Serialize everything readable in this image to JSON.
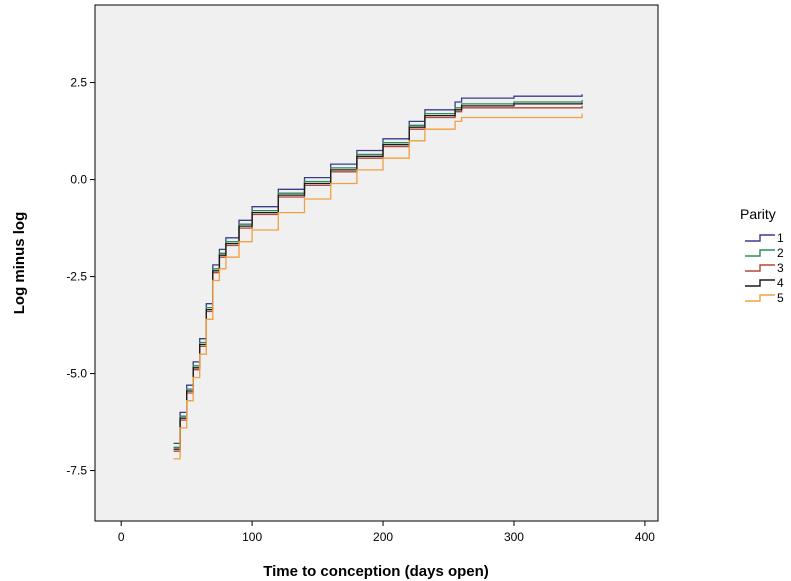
{
  "chart_data": {
    "type": "line",
    "step": true,
    "title": "",
    "xlabel": "Time to conception (days open)",
    "ylabel": "Log minus log",
    "xlim": [
      -20,
      410
    ],
    "ylim": [
      -8.8,
      4.5
    ],
    "xticks": [
      0,
      100,
      200,
      300,
      400
    ],
    "xtick_labels": [
      "0",
      "100",
      "200",
      "300",
      "400"
    ],
    "yticks": [
      -7.5,
      -5.0,
      -2.5,
      0.0,
      2.5
    ],
    "ytick_labels": [
      "-7.5",
      "-5.0",
      "-2.5",
      "0.0",
      "2.5"
    ],
    "grid": false,
    "plot_background": "#f0f0f0",
    "legend": {
      "title": "Parity",
      "position": "right"
    },
    "series": [
      {
        "name": "1",
        "color": "#3b3b8f",
        "x": [
          40,
          45,
          50,
          55,
          60,
          65,
          70,
          75,
          80,
          90,
          100,
          120,
          140,
          160,
          180,
          200,
          220,
          232,
          240,
          255,
          260,
          300,
          352
        ],
        "y": [
          -6.8,
          -6.0,
          -5.3,
          -4.7,
          -4.1,
          -3.2,
          -2.2,
          -1.8,
          -1.5,
          -1.05,
          -0.7,
          -0.25,
          0.05,
          0.4,
          0.75,
          1.05,
          1.5,
          1.8,
          1.8,
          2.0,
          2.1,
          2.15,
          2.2
        ]
      },
      {
        "name": "2",
        "color": "#2e8b57",
        "x": [
          40,
          45,
          50,
          55,
          60,
          65,
          70,
          75,
          80,
          90,
          100,
          120,
          140,
          160,
          180,
          200,
          220,
          232,
          240,
          255,
          260,
          300,
          352
        ],
        "y": [
          -6.9,
          -6.1,
          -5.4,
          -4.8,
          -4.2,
          -3.3,
          -2.3,
          -1.9,
          -1.6,
          -1.15,
          -0.8,
          -0.35,
          -0.05,
          0.3,
          0.65,
          0.95,
          1.4,
          1.7,
          1.7,
          1.85,
          1.95,
          2.0,
          2.05
        ]
      },
      {
        "name": "3",
        "color": "#b5473a",
        "x": [
          40,
          45,
          50,
          55,
          60,
          65,
          70,
          75,
          80,
          90,
          100,
          120,
          140,
          160,
          180,
          200,
          220,
          232,
          240,
          255,
          260,
          300,
          352
        ],
        "y": [
          -7.0,
          -6.2,
          -5.5,
          -4.9,
          -4.3,
          -3.4,
          -2.4,
          -2.0,
          -1.7,
          -1.25,
          -0.9,
          -0.45,
          -0.15,
          0.2,
          0.55,
          0.85,
          1.3,
          1.6,
          1.6,
          1.75,
          1.85,
          1.85,
          1.9
        ]
      },
      {
        "name": "4",
        "color": "#1a1a1a",
        "x": [
          40,
          45,
          50,
          55,
          60,
          65,
          70,
          75,
          80,
          90,
          100,
          120,
          140,
          160,
          180,
          200,
          220,
          232,
          240,
          255,
          260,
          300,
          352
        ],
        "y": [
          -6.95,
          -6.15,
          -5.45,
          -4.85,
          -4.25,
          -3.35,
          -2.35,
          -1.95,
          -1.65,
          -1.2,
          -0.85,
          -0.4,
          -0.1,
          0.25,
          0.6,
          0.9,
          1.35,
          1.65,
          1.65,
          1.8,
          1.9,
          1.95,
          1.98
        ]
      },
      {
        "name": "5",
        "color": "#f0a040",
        "x": [
          40,
          45,
          50,
          55,
          60,
          65,
          70,
          75,
          80,
          90,
          100,
          120,
          140,
          160,
          180,
          200,
          220,
          232,
          240,
          255,
          260,
          300,
          352
        ],
        "y": [
          -7.2,
          -6.4,
          -5.7,
          -5.1,
          -4.5,
          -3.6,
          -2.6,
          -2.3,
          -2.0,
          -1.6,
          -1.3,
          -0.85,
          -0.5,
          -0.1,
          0.25,
          0.55,
          1.0,
          1.3,
          1.3,
          1.5,
          1.6,
          1.6,
          1.7
        ]
      }
    ]
  }
}
